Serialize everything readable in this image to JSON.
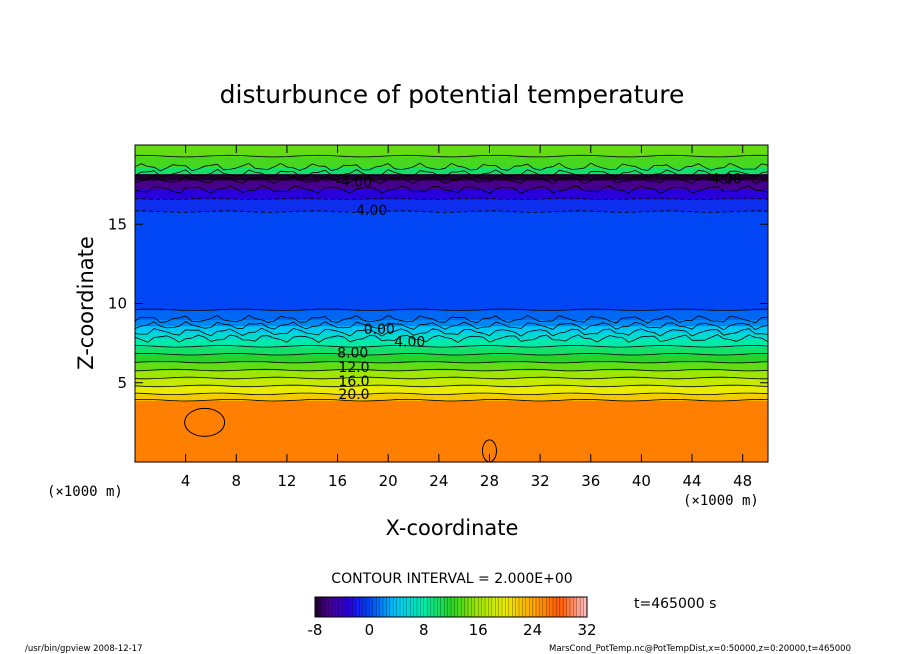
{
  "chart_data": {
    "type": "heatmap",
    "title": "disturbunce of potential temperature",
    "xlabel": "X-coordinate",
    "ylabel": "Z-coordinate",
    "x_unit_note": "(×1000 m)",
    "y_unit_note": "(×1000 m)",
    "xlim": [
      0,
      50
    ],
    "ylim": [
      0,
      20
    ],
    "x_ticks": [
      "4",
      "8",
      "12",
      "16",
      "20",
      "24",
      "28",
      "32",
      "36",
      "40",
      "44",
      "48"
    ],
    "y_ticks": [
      "5",
      "10",
      "15"
    ],
    "contour_interval_text": "CONTOUR INTERVAL = 2.000E+00",
    "time_text": "t=465000 s",
    "colorbar": {
      "min": -8,
      "max": 32,
      "ticks": [
        "-8",
        "0",
        "8",
        "16",
        "24",
        "32"
      ]
    },
    "contour_labels": [
      {
        "text": "-4.00",
        "x": 17.3,
        "z": 17.7
      },
      {
        "text": "-4.00",
        "x": 46.5,
        "z": 17.9
      },
      {
        "text": "4.00",
        "x": 18.7,
        "z": 15.9
      },
      {
        "text": "0.00",
        "x": 19.3,
        "z": 8.4
      },
      {
        "text": "4.00",
        "x": 21.7,
        "z": 7.6
      },
      {
        "text": "8.00",
        "x": 17.2,
        "z": 6.9
      },
      {
        "text": "12.0",
        "x": 17.3,
        "z": 6.0
      },
      {
        "text": "16.0",
        "x": 17.3,
        "z": 5.1
      },
      {
        "text": "20.0",
        "x": 17.3,
        "z": 4.3
      }
    ],
    "z_bands": [
      {
        "z0": 0.0,
        "z1": 3.9,
        "value": 26
      },
      {
        "z0": 3.9,
        "z1": 4.3,
        "value": 22
      },
      {
        "z0": 4.3,
        "z1": 4.8,
        "value": 20
      },
      {
        "z0": 4.8,
        "z1": 5.3,
        "value": 18
      },
      {
        "z0": 5.3,
        "z1": 5.8,
        "value": 16
      },
      {
        "z0": 5.8,
        "z1": 6.3,
        "value": 14
      },
      {
        "z0": 6.3,
        "z1": 6.8,
        "value": 12
      },
      {
        "z0": 6.8,
        "z1": 7.3,
        "value": 10
      },
      {
        "z0": 7.3,
        "z1": 7.8,
        "value": 8
      },
      {
        "z0": 7.8,
        "z1": 8.2,
        "value": 6
      },
      {
        "z0": 8.2,
        "z1": 8.6,
        "value": 4
      },
      {
        "z0": 8.6,
        "z1": 9.0,
        "value": 2
      },
      {
        "z0": 9.0,
        "z1": 9.6,
        "value": 1
      },
      {
        "z0": 9.6,
        "z1": 15.8,
        "value": 0
      },
      {
        "z0": 15.8,
        "z1": 16.6,
        "value": -1
      },
      {
        "z0": 16.6,
        "z1": 17.2,
        "value": -3
      },
      {
        "z0": 17.2,
        "z1": 17.8,
        "value": -6
      },
      {
        "z0": 17.8,
        "z1": 18.2,
        "value": -8
      },
      {
        "z0": 18.2,
        "z1": 18.6,
        "value": 10
      },
      {
        "z0": 18.6,
        "z1": 19.3,
        "value": 13
      },
      {
        "z0": 19.3,
        "z1": 20.0,
        "value": 14
      }
    ]
  },
  "footer": {
    "left": "/usr/bin/gpview   2008-12-17",
    "right": "MarsCond_PotTemp.nc@PotTempDist,x=0:50000,z=0:20000,t=465000"
  }
}
